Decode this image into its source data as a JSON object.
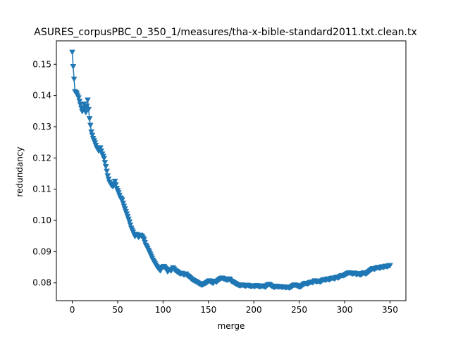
{
  "chart_data": {
    "type": "line",
    "title": "ASURES_corpusPBC_0_350_1/measures/tha-x-bible-standard2011.txt.clean.tx",
    "xlabel": "merge",
    "ylabel": "redundancy",
    "xlim": [
      -17.5,
      367.5
    ],
    "ylim": [
      0.0743,
      0.1575
    ],
    "xticks": [
      0,
      50,
      100,
      150,
      200,
      250,
      300,
      350
    ],
    "yticks": [
      0.08,
      0.09,
      0.1,
      0.11,
      0.12,
      0.13,
      0.14,
      0.15
    ],
    "ytick_labels": [
      "0.08",
      "0.09",
      "0.10",
      "0.11",
      "0.12",
      "0.13",
      "0.14",
      "0.15"
    ],
    "grid": false,
    "marker": "triangle-down",
    "series": [
      {
        "color": "#1f77b4",
        "anchors": [
          [
            0,
            0.1538
          ],
          [
            1,
            0.1492
          ],
          [
            2,
            0.1452
          ],
          [
            3,
            0.1412
          ],
          [
            5,
            0.1405
          ],
          [
            7,
            0.1392
          ],
          [
            9,
            0.137
          ],
          [
            11,
            0.1348
          ],
          [
            13,
            0.1372
          ],
          [
            15,
            0.1345
          ],
          [
            17,
            0.1385
          ],
          [
            19,
            0.1325
          ],
          [
            21,
            0.1283
          ],
          [
            23,
            0.1262
          ],
          [
            25,
            0.1248
          ],
          [
            27,
            0.1232
          ],
          [
            29,
            0.1222
          ],
          [
            31,
            0.1232
          ],
          [
            33,
            0.1212
          ],
          [
            35,
            0.1198
          ],
          [
            37,
            0.1172
          ],
          [
            39,
            0.1142
          ],
          [
            41,
            0.1122
          ],
          [
            43,
            0.1112
          ],
          [
            45,
            0.1108
          ],
          [
            47,
            0.1125
          ],
          [
            49,
            0.1102
          ],
          [
            51,
            0.1088
          ],
          [
            53,
            0.1072
          ],
          [
            55,
            0.1065
          ],
          [
            57,
            0.1045
          ],
          [
            59,
            0.1028
          ],
          [
            61,
            0.1012
          ],
          [
            63,
            0.0995
          ],
          [
            65,
            0.0975
          ],
          [
            67,
            0.0962
          ],
          [
            69,
            0.0948
          ],
          [
            71,
            0.0955
          ],
          [
            73,
            0.0945
          ],
          [
            75,
            0.0952
          ],
          [
            77,
            0.0948
          ],
          [
            79,
            0.0938
          ],
          [
            81,
            0.092
          ],
          [
            83,
            0.091
          ],
          [
            85,
            0.0898
          ],
          [
            87,
            0.0885
          ],
          [
            89,
            0.0872
          ],
          [
            91,
            0.0862
          ],
          [
            93,
            0.0852
          ],
          [
            95,
            0.0845
          ],
          [
            97,
            0.0838
          ],
          [
            99,
            0.0848
          ],
          [
            101,
            0.0852
          ],
          [
            103,
            0.0845
          ],
          [
            105,
            0.0835
          ],
          [
            107,
            0.0842
          ],
          [
            109,
            0.0838
          ],
          [
            111,
            0.0848
          ],
          [
            113,
            0.084
          ],
          [
            115,
            0.0836
          ],
          [
            117,
            0.0832
          ],
          [
            119,
            0.0828
          ],
          [
            121,
            0.083
          ],
          [
            123,
            0.0825
          ],
          [
            125,
            0.0828
          ],
          [
            127,
            0.0822
          ],
          [
            129,
            0.0818
          ],
          [
            131,
            0.0812
          ],
          [
            133,
            0.0808
          ],
          [
            135,
            0.0805
          ],
          [
            137,
            0.0802
          ],
          [
            139,
            0.0798
          ],
          [
            141,
            0.0795
          ],
          [
            143,
            0.0792
          ],
          [
            145,
            0.0796
          ],
          [
            147,
            0.0798
          ],
          [
            149,
            0.0802
          ],
          [
            151,
            0.0806
          ],
          [
            153,
            0.0802
          ],
          [
            155,
            0.0798
          ],
          [
            157,
            0.0805
          ],
          [
            159,
            0.0802
          ],
          [
            161,
            0.0808
          ],
          [
            163,
            0.0812
          ],
          [
            165,
            0.0815
          ],
          [
            167,
            0.0812
          ],
          [
            169,
            0.081
          ],
          [
            171,
            0.0808
          ],
          [
            173,
            0.0812
          ],
          [
            175,
            0.0805
          ],
          [
            177,
            0.0802
          ],
          [
            179,
            0.0798
          ],
          [
            181,
            0.0795
          ],
          [
            183,
            0.0792
          ],
          [
            185,
            0.079
          ],
          [
            187,
            0.0793
          ],
          [
            189,
            0.0791
          ],
          [
            191,
            0.0789
          ],
          [
            193,
            0.0792
          ],
          [
            195,
            0.079
          ],
          [
            197,
            0.0788
          ],
          [
            199,
            0.079
          ],
          [
            201,
            0.0788
          ],
          [
            203,
            0.0791
          ],
          [
            205,
            0.0789
          ],
          [
            207,
            0.0787
          ],
          [
            209,
            0.079
          ],
          [
            211,
            0.0788
          ],
          [
            213,
            0.0786
          ],
          [
            215,
            0.0792
          ],
          [
            217,
            0.0795
          ],
          [
            219,
            0.079
          ],
          [
            221,
            0.0787
          ],
          [
            223,
            0.0785
          ],
          [
            225,
            0.0789
          ],
          [
            227,
            0.0786
          ],
          [
            229,
            0.0788
          ],
          [
            231,
            0.0785
          ],
          [
            233,
            0.0787
          ],
          [
            235,
            0.0784
          ],
          [
            237,
            0.0786
          ],
          [
            239,
            0.0783
          ],
          [
            241,
            0.0786
          ],
          [
            243,
            0.079
          ],
          [
            245,
            0.0793
          ],
          [
            247,
            0.0791
          ],
          [
            249,
            0.0788
          ],
          [
            251,
            0.0786
          ],
          [
            253,
            0.079
          ],
          [
            255,
            0.0795
          ],
          [
            257,
            0.0798
          ],
          [
            259,
            0.0796
          ],
          [
            261,
            0.0799
          ],
          [
            263,
            0.0802
          ],
          [
            265,
            0.08
          ],
          [
            267,
            0.0806
          ],
          [
            269,
            0.0803
          ],
          [
            271,
            0.0805
          ],
          [
            273,
            0.0802
          ],
          [
            275,
            0.0806
          ],
          [
            277,
            0.081
          ],
          [
            279,
            0.0808
          ],
          [
            281,
            0.0812
          ],
          [
            283,
            0.0809
          ],
          [
            285,
            0.0813
          ],
          [
            287,
            0.0815
          ],
          [
            289,
            0.0812
          ],
          [
            291,
            0.0818
          ],
          [
            293,
            0.0815
          ],
          [
            295,
            0.082
          ],
          [
            297,
            0.0823
          ],
          [
            299,
            0.0822
          ],
          [
            301,
            0.0826
          ],
          [
            303,
            0.0829
          ],
          [
            305,
            0.0832
          ],
          [
            307,
            0.083
          ],
          [
            309,
            0.0828
          ],
          [
            311,
            0.0831
          ],
          [
            313,
            0.0826
          ],
          [
            315,
            0.0829
          ],
          [
            317,
            0.0825
          ],
          [
            319,
            0.0827
          ],
          [
            321,
            0.0832
          ],
          [
            323,
            0.0828
          ],
          [
            325,
            0.0831
          ],
          [
            327,
            0.0836
          ],
          [
            329,
            0.0841
          ],
          [
            331,
            0.0845
          ],
          [
            333,
            0.0843
          ],
          [
            335,
            0.0847
          ],
          [
            337,
            0.0849
          ],
          [
            339,
            0.0846
          ],
          [
            341,
            0.0851
          ],
          [
            343,
            0.0849
          ],
          [
            345,
            0.0853
          ],
          [
            347,
            0.0851
          ],
          [
            349,
            0.0855
          ],
          [
            350,
            0.0855
          ]
        ]
      }
    ]
  }
}
